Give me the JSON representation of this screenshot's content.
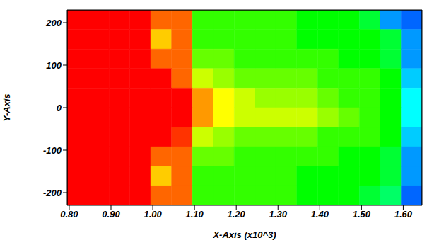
{
  "chart_data": {
    "type": "heatmap",
    "xlabel": "X-Axis (x10^3)",
    "ylabel": "Y-Axis",
    "x_edges": [
      795,
      845,
      895,
      945,
      995,
      1045,
      1095,
      1145,
      1195,
      1245,
      1295,
      1345,
      1395,
      1445,
      1495,
      1545,
      1595,
      1645
    ],
    "y_edges": [
      230,
      184,
      138,
      92,
      46,
      0,
      -46,
      -92,
      -138,
      -184,
      -230
    ],
    "cells": [
      [
        10,
        10,
        10,
        10,
        9,
        9,
        5.5,
        5.5,
        5.5,
        5.5,
        5.5,
        5,
        5,
        5,
        4.5,
        1.5,
        1
      ],
      [
        10,
        10,
        10,
        10,
        8,
        9,
        5.5,
        5.5,
        5.5,
        5.5,
        5.5,
        5,
        5,
        5,
        5,
        4.5,
        1.5
      ],
      [
        10,
        10,
        10,
        10,
        9,
        9,
        6,
        6,
        5.5,
        5.5,
        5.5,
        5.5,
        5.5,
        5,
        5,
        4.5,
        1.5
      ],
      [
        10,
        10,
        10,
        10,
        10,
        9,
        7,
        6.5,
        6,
        6,
        6,
        6,
        5.5,
        5.5,
        5.5,
        5,
        2
      ],
      [
        10,
        10,
        10,
        10,
        10,
        10,
        8.5,
        7.5,
        7,
        6.5,
        6.5,
        6.5,
        6,
        5.5,
        5.5,
        5,
        2.5
      ],
      [
        10,
        10,
        10,
        10,
        10,
        10,
        8.5,
        7.5,
        7,
        7,
        7,
        7,
        6.5,
        6,
        5.5,
        5,
        2.5
      ],
      [
        10,
        10,
        10,
        10,
        10,
        9.5,
        7,
        6.5,
        6,
        6,
        6,
        6,
        5.5,
        5.5,
        5.5,
        5,
        2
      ],
      [
        10,
        10,
        10,
        10,
        9,
        9,
        6,
        6,
        5.5,
        5.5,
        5.5,
        5.5,
        5.5,
        5,
        5,
        4.5,
        1.5
      ],
      [
        10,
        10,
        10,
        10,
        8,
        9,
        5.5,
        5.5,
        5.5,
        5.5,
        5.5,
        5,
        5,
        5,
        5,
        4.5,
        1.5
      ],
      [
        10,
        10,
        10,
        10,
        9,
        9,
        5.5,
        5.5,
        5.5,
        5.5,
        5.5,
        5,
        5,
        5,
        4.5,
        4,
        1
      ]
    ],
    "value_range": [
      0,
      10
    ],
    "xlim": [
      795,
      1645
    ],
    "ylim": [
      -230,
      230
    ],
    "xticks": [
      {
        "value": 800,
        "label": "0.80"
      },
      {
        "value": 900,
        "label": "0.90"
      },
      {
        "value": 1000,
        "label": "1.00"
      },
      {
        "value": 1100,
        "label": "1.10"
      },
      {
        "value": 1200,
        "label": "1.20"
      },
      {
        "value": 1300,
        "label": "1.30"
      },
      {
        "value": 1400,
        "label": "1.40"
      },
      {
        "value": 1500,
        "label": "1.50"
      },
      {
        "value": 1600,
        "label": "1.60"
      }
    ],
    "yticks": [
      -200,
      -100,
      0,
      100,
      200
    ],
    "grid": false
  }
}
